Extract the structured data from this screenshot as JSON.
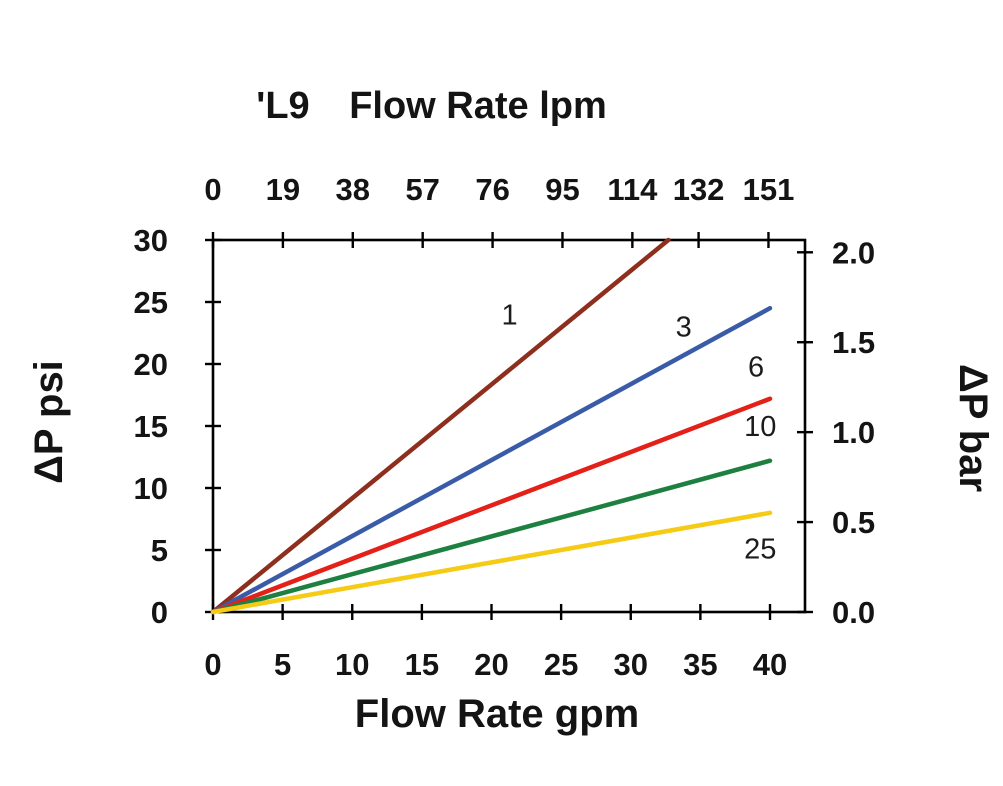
{
  "chart_data": {
    "type": "line",
    "model": "'L9",
    "title": "Flow Rate lpm",
    "xlabel_bottom": "Flow Rate gpm",
    "ylabel_left": "ΔP psi",
    "ylabel_right": "ΔP bar",
    "grid": false,
    "legend": "none (inline curve labels)",
    "xlim_gpm": [
      0,
      42.5
    ],
    "ylim_psi": [
      0,
      30
    ],
    "x_gpm_ticks": [
      0,
      5,
      10,
      15,
      20,
      25,
      30,
      35,
      40
    ],
    "x_lpm_ticks": [
      0,
      19,
      38,
      57,
      76,
      95,
      114,
      132,
      151
    ],
    "y_psi_ticks": [
      0,
      5,
      10,
      15,
      20,
      25,
      30
    ],
    "y_bar_tick_labels": [
      "0.0",
      "0.5",
      "1.0",
      "1.5",
      "2.0"
    ],
    "y_bar_tick_values": [
      0,
      0.5,
      1.0,
      1.5,
      2.0
    ],
    "psi_per_bar": 14.504,
    "lpm_per_gpm": 3.7854,
    "axis_color": "#000000",
    "series": [
      {
        "name": "1",
        "color": "#8E2F1E",
        "points": [
          [
            0,
            0
          ],
          [
            32.7,
            30
          ]
        ],
        "label_at": [
          21.3,
          23.2
        ]
      },
      {
        "name": "3",
        "color": "#3A5BA8",
        "points": [
          [
            0,
            0
          ],
          [
            40,
            24.5
          ]
        ],
        "label_at": [
          33.8,
          22.2
        ]
      },
      {
        "name": "6",
        "color": "#E32119",
        "points": [
          [
            0,
            0
          ],
          [
            40,
            17.2
          ]
        ],
        "label_at": [
          39.0,
          19.0
        ]
      },
      {
        "name": "10",
        "color": "#1E8040",
        "points": [
          [
            0,
            0
          ],
          [
            40,
            12.2
          ]
        ],
        "label_at": [
          39.3,
          14.2
        ]
      },
      {
        "name": "25",
        "color": "#F6CB15",
        "points": [
          [
            0,
            0
          ],
          [
            40,
            8.0
          ]
        ],
        "label_at": [
          39.3,
          4.3
        ]
      }
    ]
  }
}
